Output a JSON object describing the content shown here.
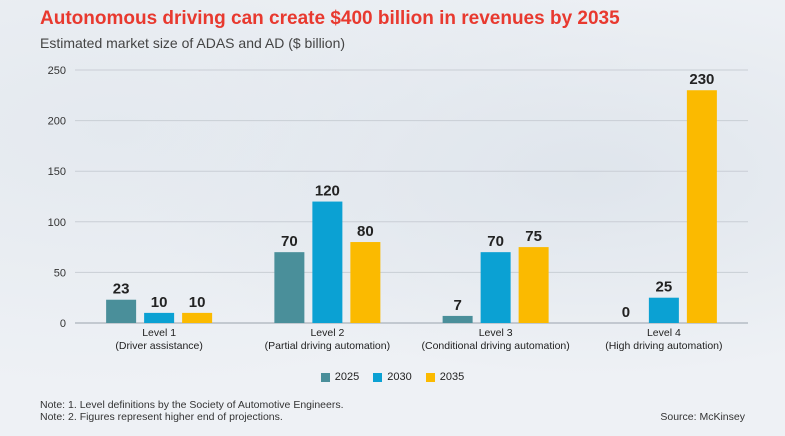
{
  "header": {
    "title": "Autonomous driving can create $400 billion in revenues by 2035",
    "subtitle": "Estimated market size of ADAS and AD ($ billion)"
  },
  "chart_data": {
    "type": "bar",
    "title": "Autonomous driving can create $400 billion in revenues by 2035",
    "subtitle": "Estimated market size of ADAS and AD ($ billion)",
    "categories": [
      [
        "Level 1",
        "(Driver assistance)"
      ],
      [
        "Level 2",
        "(Partial driving automation)"
      ],
      [
        "Level 3",
        "(Conditional driving automation)"
      ],
      [
        "Level 4",
        "(High driving automation)"
      ]
    ],
    "series": [
      {
        "name": "2025",
        "color": "#4a8f9a",
        "values": [
          23,
          70,
          7,
          0
        ]
      },
      {
        "name": "2030",
        "color": "#0ba1d3",
        "values": [
          10,
          120,
          70,
          25
        ]
      },
      {
        "name": "2035",
        "color": "#fbba00",
        "values": [
          10,
          80,
          75,
          230
        ]
      }
    ],
    "ylim": [
      0,
      250
    ],
    "yticks": [
      0,
      50,
      100,
      150,
      200,
      250
    ],
    "grid": true,
    "legend": "bottom-center"
  },
  "footer": {
    "notes": [
      "Note: 1. Level definitions by the Society of Automotive Engineers.",
      "Note: 2. Figures represent higher end of projections."
    ],
    "source": "Source: McKinsey"
  }
}
